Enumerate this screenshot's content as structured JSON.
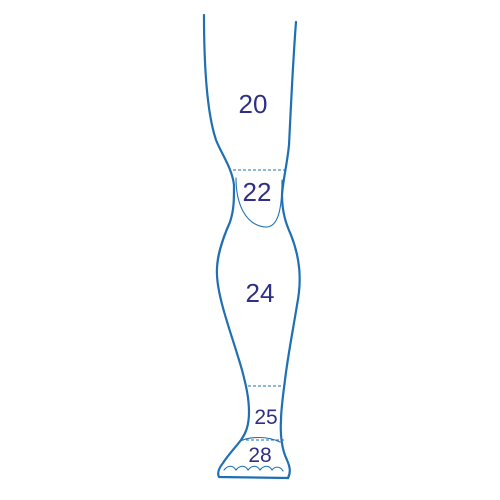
{
  "colors": {
    "outline": "#1f6fb3",
    "label": "#2e2f86",
    "background": "#ffffff"
  },
  "zones": [
    {
      "id": "thigh",
      "label": "20"
    },
    {
      "id": "knee",
      "label": "22"
    },
    {
      "id": "calf",
      "label": "24"
    },
    {
      "id": "ankle",
      "label": "25"
    },
    {
      "id": "foot",
      "label": "28"
    }
  ]
}
